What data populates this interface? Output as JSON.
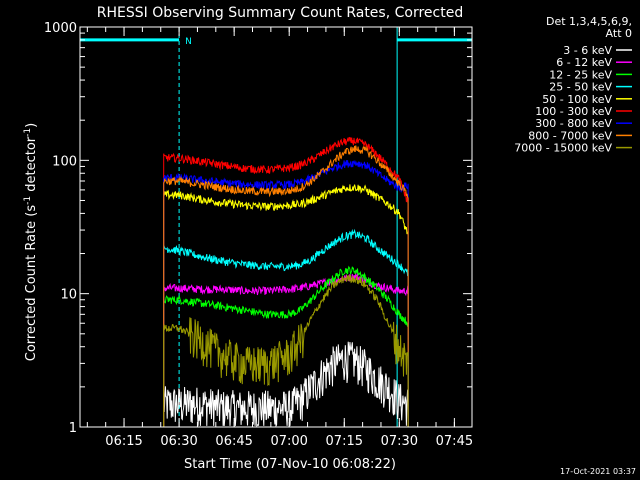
{
  "chart_data": {
    "type": "line",
    "title": "RHESSI Observing Summary Count Rates, Corrected",
    "xlabel": "Start Time (07-Nov-10 06:08:22)",
    "ylabel": "Corrected Count Rate (s",
    "ylabel_sup1": "-1",
    "ylabel_mid": " detector",
    "ylabel_sup2": "-1",
    "ylabel_end": ")",
    "xlim": [
      6.05,
      7.83
    ],
    "x_unit": "hour of day (UT)",
    "yscale": "log",
    "ylim": [
      1,
      1000
    ],
    "xticks": [
      {
        "value": 6.25,
        "label": "06:15"
      },
      {
        "value": 6.5,
        "label": "06:30"
      },
      {
        "value": 6.75,
        "label": "06:45"
      },
      {
        "value": 7.0,
        "label": "07:00"
      },
      {
        "value": 7.25,
        "label": "07:15"
      },
      {
        "value": 7.5,
        "label": "07:30"
      },
      {
        "value": 7.75,
        "label": "07:45"
      }
    ],
    "yticks": [
      {
        "value": 1,
        "label": "1"
      },
      {
        "value": 10,
        "label": "10"
      },
      {
        "value": 100,
        "label": "100"
      },
      {
        "value": 1000,
        "label": "1000"
      }
    ],
    "legend_header": [
      "Det 1,3,4,5,6,9,",
      "Att 0"
    ],
    "legend_position": "right",
    "footer_timestamp": "17-Oct-2021 03:37",
    "night_marker_label": "N",
    "data_window": [
      6.43,
      7.54
    ],
    "night_intervals": [
      {
        "start": 6.05,
        "end": 6.5
      },
      {
        "start": 7.49,
        "end": 7.83
      }
    ],
    "night_bar_level": 800,
    "series": [
      {
        "name": "3 - 6 keV",
        "color": "#ffffff",
        "x": [
          6.43,
          6.5,
          6.6,
          6.7,
          6.8,
          6.9,
          7.0,
          7.05,
          7.1,
          7.15,
          7.2,
          7.25,
          7.3,
          7.35,
          7.4,
          7.45,
          7.5,
          7.54
        ],
        "y": [
          1.5,
          1.5,
          1.5,
          1.4,
          1.4,
          1.4,
          1.4,
          1.6,
          2.0,
          2.5,
          3.0,
          3.3,
          3.2,
          2.8,
          2.3,
          2.0,
          1.6,
          1.5
        ]
      },
      {
        "name": "6 - 12 keV",
        "color": "#ff00ff",
        "x": [
          6.43,
          6.5,
          6.6,
          6.7,
          6.8,
          6.9,
          7.0,
          7.05,
          7.1,
          7.15,
          7.2,
          7.25,
          7.3,
          7.35,
          7.4,
          7.45,
          7.5,
          7.54
        ],
        "y": [
          11,
          11,
          10.8,
          10.8,
          10.5,
          10.5,
          10.8,
          11,
          11.5,
          12,
          12.5,
          13,
          13.5,
          12.5,
          11.5,
          11,
          10.5,
          10.5
        ]
      },
      {
        "name": "12 - 25 keV",
        "color": "#00ff00",
        "x": [
          6.43,
          6.5,
          6.6,
          6.7,
          6.8,
          6.9,
          7.0,
          7.05,
          7.1,
          7.15,
          7.2,
          7.25,
          7.3,
          7.35,
          7.4,
          7.45,
          7.5,
          7.54
        ],
        "y": [
          9,
          9,
          8.5,
          8,
          7.5,
          7,
          7,
          7.5,
          9,
          11,
          13,
          15,
          15,
          13,
          11,
          9,
          7,
          6
        ]
      },
      {
        "name": "25 - 50 keV",
        "color": "#00ffff",
        "x": [
          6.43,
          6.5,
          6.6,
          6.7,
          6.8,
          6.9,
          7.0,
          7.05,
          7.1,
          7.15,
          7.2,
          7.25,
          7.3,
          7.35,
          7.4,
          7.45,
          7.5,
          7.54
        ],
        "y": [
          22,
          21,
          19,
          17.5,
          16.5,
          16,
          16,
          16.5,
          18,
          21,
          24,
          27,
          28,
          26,
          22,
          19,
          16.5,
          14
        ]
      },
      {
        "name": "50 - 100 keV",
        "color": "#ffff00",
        "x": [
          6.43,
          6.5,
          6.6,
          6.7,
          6.8,
          6.9,
          7.0,
          7.05,
          7.1,
          7.15,
          7.2,
          7.25,
          7.3,
          7.35,
          7.4,
          7.45,
          7.5,
          7.54
        ],
        "y": [
          55,
          55,
          51,
          48,
          46,
          45,
          46,
          47,
          50,
          54,
          58,
          62,
          63,
          60,
          53,
          47,
          40,
          28
        ]
      },
      {
        "name": "100 - 300 keV",
        "color": "#ff0000",
        "x": [
          6.43,
          6.5,
          6.6,
          6.7,
          6.8,
          6.9,
          7.0,
          7.05,
          7.1,
          7.15,
          7.2,
          7.25,
          7.3,
          7.35,
          7.4,
          7.45,
          7.5,
          7.54
        ],
        "y": [
          105,
          104,
          98,
          92,
          87,
          85,
          88,
          92,
          100,
          113,
          127,
          138,
          140,
          130,
          110,
          90,
          72,
          48
        ]
      },
      {
        "name": "300 - 800 keV",
        "color": "#0000ff",
        "x": [
          6.43,
          6.5,
          6.6,
          6.7,
          6.8,
          6.9,
          7.0,
          7.05,
          7.1,
          7.15,
          7.2,
          7.25,
          7.3,
          7.35,
          7.4,
          7.45,
          7.5,
          7.54
        ],
        "y": [
          74,
          74,
          71,
          68,
          66,
          65,
          66,
          68,
          73,
          80,
          88,
          94,
          96,
          92,
          80,
          70,
          62,
          65
        ]
      },
      {
        "name": "800 - 7000 keV",
        "color": "#ff8000",
        "x": [
          6.43,
          6.5,
          6.6,
          6.7,
          6.8,
          6.9,
          7.0,
          7.05,
          7.1,
          7.15,
          7.2,
          7.25,
          7.3,
          7.35,
          7.4,
          7.45,
          7.5,
          7.54
        ],
        "y": [
          70,
          70,
          66,
          62,
          59,
          58,
          59,
          62,
          70,
          82,
          98,
          115,
          122,
          118,
          100,
          82,
          67,
          55
        ]
      },
      {
        "name": "7000 - 15000 keV",
        "color": "#999900",
        "x": [
          6.43,
          6.5,
          6.6,
          6.7,
          6.8,
          6.9,
          7.0,
          7.05,
          7.1,
          7.15,
          7.2,
          7.25,
          7.3,
          7.35,
          7.4,
          7.45,
          7.5,
          7.54
        ],
        "y": [
          5.5,
          5.5,
          4.5,
          3.5,
          3.0,
          3.0,
          3.5,
          4.5,
          6.5,
          9,
          11.5,
          13,
          13,
          11.5,
          9,
          6,
          4,
          3
        ]
      }
    ]
  }
}
